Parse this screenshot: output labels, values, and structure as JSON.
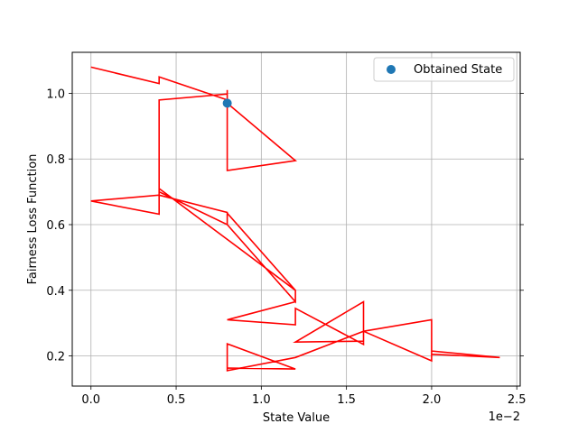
{
  "chart_data": {
    "type": "line",
    "title": "",
    "xlabel": "State Value",
    "ylabel": "Fairness Loss Function",
    "x_offset_label": "1e−2",
    "xlim": [
      -0.0011,
      0.0252
    ],
    "ylim": [
      0.108,
      1.125
    ],
    "x_ticks": [
      0,
      0.005,
      0.01,
      0.015,
      0.02,
      0.025
    ],
    "x_tick_labels": [
      "0.0",
      "0.5",
      "1.0",
      "1.5",
      "2.0",
      "2.5"
    ],
    "y_ticks": [
      0.2,
      0.4,
      0.6,
      0.8,
      1.0
    ],
    "y_tick_labels": [
      "0.2",
      "0.4",
      "0.6",
      "0.8",
      "1.0"
    ],
    "grid": true,
    "legend_position": "top-right",
    "series": [
      {
        "kind": "line",
        "color": "#ff0000",
        "x": [
          0,
          0.004,
          0.004,
          0.008,
          0.008,
          0.008,
          0.012,
          0.008,
          0.008,
          0.004,
          0.004,
          0.004,
          0.012,
          0.012,
          0.008,
          0.008,
          0.004,
          0.004,
          0,
          0.004,
          0.004,
          0.008,
          0.008,
          0.012,
          0.012,
          0.008,
          0.012,
          0.012,
          0.016,
          0.016,
          0.012,
          0.016,
          0.016,
          0.02,
          0.02,
          0.024,
          0.02,
          0.02,
          0.016,
          0.012,
          0.008,
          0.008,
          0.012,
          0.008,
          0.008
        ],
        "y": [
          1.08,
          1.03,
          1.05,
          0.98,
          1.01,
          0.765,
          0.795,
          0.97,
          0.998,
          0.98,
          0.7,
          0.71,
          0.4,
          0.365,
          0.6,
          0.637,
          0.69,
          0.632,
          0.672,
          0.69,
          0.7,
          0.6,
          0.635,
          0.4,
          0.365,
          0.31,
          0.295,
          0.345,
          0.235,
          0.365,
          0.242,
          0.245,
          0.275,
          0.31,
          0.205,
          0.195,
          0.215,
          0.185,
          0.275,
          0.195,
          0.155,
          0.237,
          0.16,
          0.163,
          0.155
        ]
      },
      {
        "name": "Obtained State",
        "kind": "scatter",
        "color": "#1f77b4",
        "x": [
          0.008
        ],
        "y": [
          0.97
        ]
      }
    ]
  }
}
